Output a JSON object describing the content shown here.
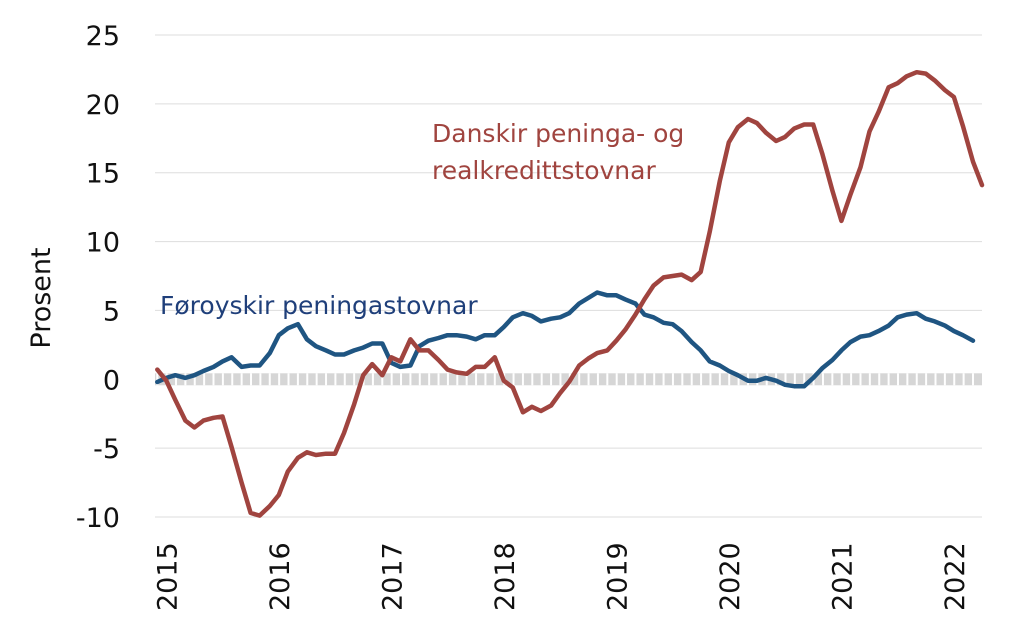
{
  "chart_data": {
    "type": "line",
    "title": "",
    "xlabel": "",
    "ylabel": "Prosent",
    "ylim": [
      -10,
      25
    ],
    "yticks": [
      25,
      20,
      15,
      10,
      5,
      0,
      -5,
      -10
    ],
    "ytick_labels": [
      "25",
      "20",
      "15",
      "10",
      "5",
      "0",
      "-5",
      "-10"
    ],
    "xlim": [
      2014.9,
      2022.25
    ],
    "xticks": [
      2015,
      2016,
      2017,
      2018,
      2019,
      2020,
      2021,
      2022
    ],
    "xtick_labels": [
      "2015",
      "2016",
      "2017",
      "2018",
      "2019",
      "2020",
      "2021",
      "2022"
    ],
    "grid": "horizontal",
    "legend": "inline labels",
    "series": [
      {
        "name": "Føroyskir peningastovnar",
        "color": "#1f5582",
        "x": [
          2014.92,
          2015.0,
          2015.08,
          2015.17,
          2015.25,
          2015.33,
          2015.42,
          2015.5,
          2015.58,
          2015.67,
          2015.75,
          2015.83,
          2015.92,
          2016.0,
          2016.08,
          2016.17,
          2016.25,
          2016.33,
          2016.42,
          2016.5,
          2016.58,
          2016.67,
          2016.75,
          2016.83,
          2016.92,
          2017.0,
          2017.08,
          2017.17,
          2017.25,
          2017.33,
          2017.42,
          2017.5,
          2017.58,
          2017.67,
          2017.75,
          2017.83,
          2017.92,
          2018.0,
          2018.08,
          2018.17,
          2018.25,
          2018.33,
          2018.42,
          2018.5,
          2018.58,
          2018.67,
          2018.75,
          2018.83,
          2018.92,
          2019.0,
          2019.08,
          2019.17,
          2019.25,
          2019.33,
          2019.42,
          2019.5,
          2019.58,
          2019.67,
          2019.75,
          2019.83,
          2019.92,
          2020.0,
          2020.08,
          2020.17,
          2020.25,
          2020.33,
          2020.42,
          2020.5,
          2020.58,
          2020.67,
          2020.75,
          2020.83,
          2020.92,
          2021.0,
          2021.08,
          2021.17,
          2021.25,
          2021.33,
          2021.42,
          2021.5,
          2021.58,
          2021.67,
          2021.75,
          2021.83,
          2021.92,
          2022.0,
          2022.08,
          2022.17
        ],
        "values": [
          -0.2,
          0.1,
          0.3,
          0.1,
          0.3,
          0.6,
          0.9,
          1.3,
          1.6,
          0.9,
          1.0,
          1.0,
          1.9,
          3.2,
          3.7,
          4.0,
          2.9,
          2.4,
          2.1,
          1.8,
          1.8,
          2.1,
          2.3,
          2.6,
          2.6,
          1.2,
          0.9,
          1.0,
          2.4,
          2.8,
          3.0,
          3.2,
          3.2,
          3.1,
          2.9,
          3.2,
          3.2,
          3.8,
          4.5,
          4.8,
          4.6,
          4.2,
          4.4,
          4.5,
          4.8,
          5.5,
          5.9,
          6.3,
          6.1,
          6.1,
          5.8,
          5.5,
          4.7,
          4.5,
          4.1,
          4.0,
          3.5,
          2.7,
          2.1,
          1.3,
          1.0,
          0.6,
          0.3,
          -0.1,
          -0.1,
          0.1,
          -0.1,
          -0.4,
          -0.5,
          -0.5,
          0.1,
          0.8,
          1.4,
          2.1,
          2.7,
          3.1,
          3.2,
          3.5,
          3.9,
          4.5,
          4.7,
          4.8,
          4.4,
          4.2,
          3.9,
          3.5,
          3.2,
          2.8
        ]
      },
      {
        "name": "Danskir peninga- og realkredittstovnar",
        "name_lines": [
          "Danskir peninga- og",
          "realkredittstovnar"
        ],
        "color": "#a0443f",
        "x": [
          2014.92,
          2015.0,
          2015.08,
          2015.17,
          2015.25,
          2015.33,
          2015.42,
          2015.5,
          2015.58,
          2015.67,
          2015.75,
          2015.83,
          2015.92,
          2016.0,
          2016.08,
          2016.17,
          2016.25,
          2016.33,
          2016.42,
          2016.5,
          2016.58,
          2016.67,
          2016.75,
          2016.83,
          2016.92,
          2017.0,
          2017.08,
          2017.17,
          2017.25,
          2017.33,
          2017.42,
          2017.5,
          2017.58,
          2017.67,
          2017.75,
          2017.83,
          2017.92,
          2018.0,
          2018.08,
          2018.17,
          2018.25,
          2018.33,
          2018.42,
          2018.5,
          2018.58,
          2018.67,
          2018.75,
          2018.83,
          2018.92,
          2019.0,
          2019.08,
          2019.17,
          2019.25,
          2019.33,
          2019.42,
          2019.5,
          2019.58,
          2019.67,
          2019.75,
          2019.83,
          2019.92,
          2020.0,
          2020.08,
          2020.17,
          2020.25,
          2020.33,
          2020.42,
          2020.5,
          2020.58,
          2020.67,
          2020.75,
          2020.83,
          2020.92,
          2021.0,
          2021.08,
          2021.17,
          2021.25,
          2021.33,
          2021.42,
          2021.5,
          2021.58,
          2021.67,
          2021.75,
          2021.83,
          2021.92,
          2022.0,
          2022.08,
          2022.17,
          2022.25
        ],
        "values": [
          0.7,
          -0.1,
          -1.5,
          -3.0,
          -3.5,
          -3.0,
          -2.8,
          -2.7,
          -4.9,
          -7.5,
          -9.7,
          -9.9,
          -9.2,
          -8.4,
          -6.7,
          -5.7,
          -5.3,
          -5.5,
          -5.4,
          -5.4,
          -3.9,
          -1.8,
          0.3,
          1.1,
          0.3,
          1.6,
          1.3,
          2.9,
          2.1,
          2.1,
          1.4,
          0.7,
          0.5,
          0.4,
          0.9,
          0.9,
          1.6,
          -0.1,
          -0.6,
          -2.4,
          -2.0,
          -2.3,
          -1.9,
          -1.0,
          -0.2,
          1.0,
          1.5,
          1.9,
          2.1,
          2.8,
          3.6,
          4.7,
          5.8,
          6.8,
          7.4,
          7.5,
          7.6,
          7.2,
          7.8,
          10.7,
          14.4,
          17.2,
          18.3,
          18.9,
          18.6,
          17.9,
          17.3,
          17.6,
          18.2,
          18.5,
          18.5,
          16.4,
          13.7,
          11.5,
          13.4,
          15.4,
          18.0,
          19.4,
          21.2,
          21.5,
          22.0,
          22.3,
          22.2,
          21.7,
          21.0,
          20.5,
          18.4,
          15.8,
          14.1
        ]
      }
    ]
  }
}
